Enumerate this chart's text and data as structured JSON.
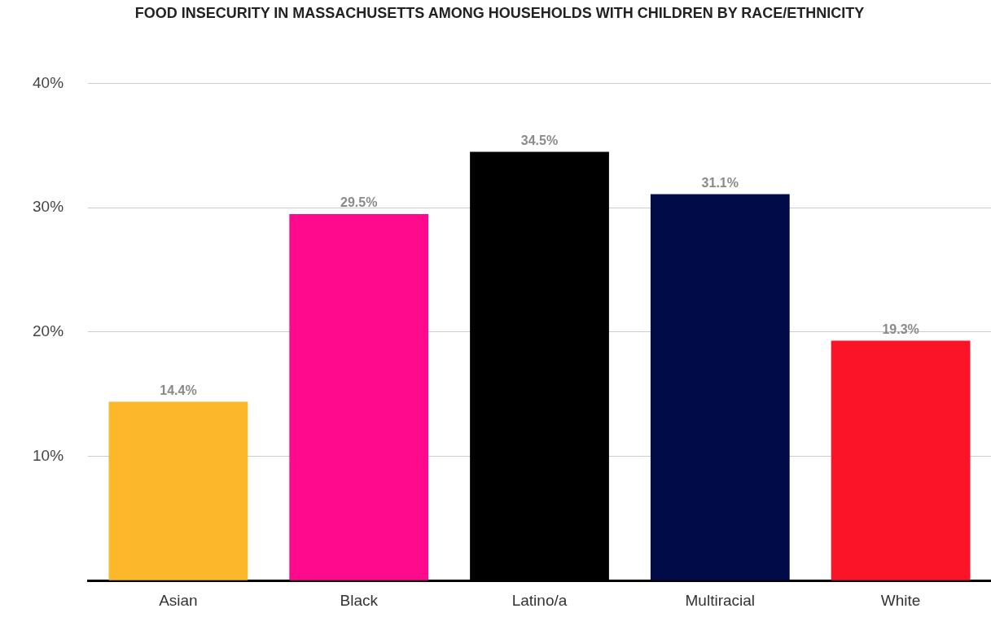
{
  "chart_data": {
    "type": "bar",
    "title": "FOOD INSECURITY IN MASSACHUSETTS AMONG HOUSEHOLDS WITH CHILDREN BY RACE/ETHNICITY",
    "categories": [
      "Asian",
      "Black",
      "Latino/a",
      "Multiracial",
      "White"
    ],
    "values": [
      14.4,
      29.5,
      34.5,
      31.1,
      19.3
    ],
    "colors": [
      "#fdb72b",
      "#ff0a8c",
      "#000000",
      "#000b47",
      "#fb1428"
    ],
    "value_labels": [
      "14.4%",
      "29.5%",
      "34.5%",
      "31.1%",
      "19.3%"
    ],
    "ylim": [
      0,
      40
    ],
    "yticks": [
      {
        "value": 0,
        "label": null
      },
      {
        "value": 10,
        "label": "10%"
      },
      {
        "value": 20,
        "label": "20%"
      },
      {
        "value": 30,
        "label": "30%"
      },
      {
        "value": 40,
        "label": "40%"
      }
    ],
    "grid": "y",
    "legend": false
  }
}
